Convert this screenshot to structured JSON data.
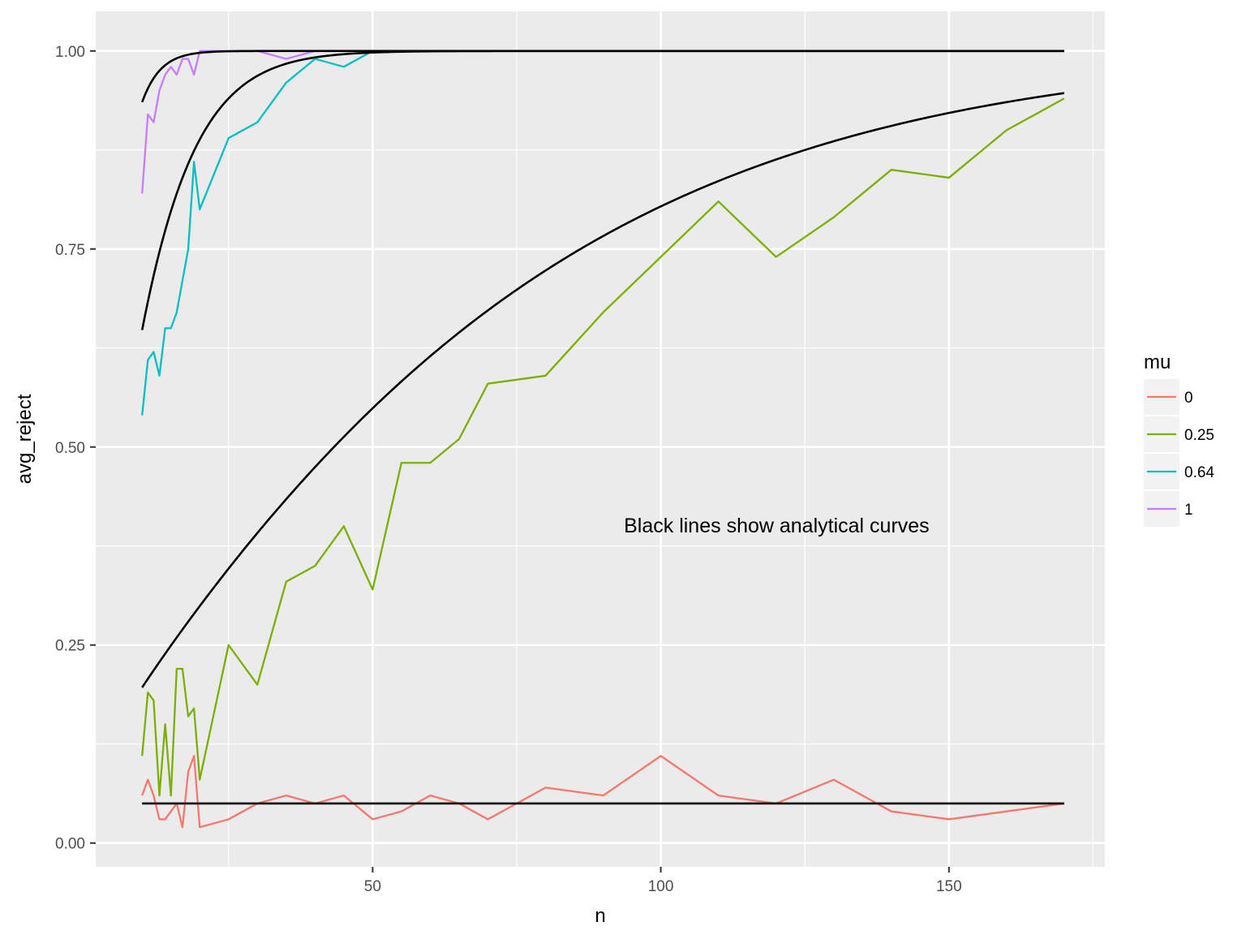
{
  "chart_data": {
    "type": "line",
    "xlabel": "n",
    "ylabel": "avg_reject",
    "xlim": [
      1.95,
      177.05
    ],
    "ylim": [
      -0.03,
      1.05
    ],
    "x_ticks": [
      50,
      100,
      150
    ],
    "x_tick_labels": [
      "50",
      "100",
      "150"
    ],
    "x_minor_ticks": [
      25,
      75,
      125,
      175
    ],
    "y_ticks": [
      0,
      0.25,
      0.5,
      0.75,
      1.0
    ],
    "y_tick_labels": [
      "0.00",
      "0.25",
      "0.50",
      "0.75",
      "1.00"
    ],
    "y_minor_ticks": [
      0.125,
      0.375,
      0.625,
      0.875
    ],
    "grid": true,
    "background": "#ebebeb",
    "legend": {
      "title": "mu",
      "position": "right"
    },
    "annotation": "Black lines show analytical curves",
    "series": [
      {
        "name": "0",
        "color": "#f8766d",
        "x": [
          10,
          11,
          12,
          13,
          14,
          15,
          16,
          17,
          18,
          19,
          20,
          25,
          30,
          35,
          40,
          45,
          50,
          55,
          60,
          65,
          70,
          80,
          90,
          100,
          110,
          120,
          130,
          140,
          150,
          160,
          170
        ],
        "y": [
          0.06,
          0.08,
          0.06,
          0.03,
          0.03,
          0.04,
          0.05,
          0.02,
          0.09,
          0.11,
          0.02,
          0.03,
          0.05,
          0.06,
          0.05,
          0.06,
          0.03,
          0.04,
          0.06,
          0.05,
          0.03,
          0.07,
          0.06,
          0.11,
          0.06,
          0.05,
          0.08,
          0.04,
          0.03,
          0.04,
          0.05
        ]
      },
      {
        "name": "0.25",
        "color": "#7cae00",
        "x": [
          10,
          11,
          12,
          13,
          14,
          15,
          16,
          17,
          18,
          19,
          20,
          25,
          30,
          35,
          40,
          45,
          50,
          55,
          60,
          65,
          70,
          80,
          90,
          100,
          110,
          120,
          130,
          140,
          150,
          160,
          170
        ],
        "y": [
          0.11,
          0.19,
          0.18,
          0.06,
          0.15,
          0.06,
          0.22,
          0.22,
          0.16,
          0.17,
          0.08,
          0.25,
          0.2,
          0.33,
          0.35,
          0.4,
          0.32,
          0.48,
          0.48,
          0.51,
          0.58,
          0.59,
          0.67,
          0.74,
          0.81,
          0.74,
          0.79,
          0.85,
          0.84,
          0.9,
          0.94
        ]
      },
      {
        "name": "0.64",
        "color": "#00bfc4",
        "x": [
          10,
          11,
          12,
          13,
          14,
          15,
          16,
          17,
          18,
          19,
          20,
          25,
          30,
          35,
          40,
          45,
          50
        ],
        "y": [
          0.54,
          0.61,
          0.62,
          0.59,
          0.65,
          0.65,
          0.67,
          0.71,
          0.75,
          0.86,
          0.8,
          0.89,
          0.91,
          0.96,
          0.99,
          0.98,
          1.0
        ]
      },
      {
        "name": "1",
        "color": "#c77cff",
        "x": [
          10,
          11,
          12,
          13,
          14,
          15,
          16,
          17,
          18,
          19,
          20,
          25,
          30,
          35,
          40
        ],
        "y": [
          0.82,
          0.92,
          0.91,
          0.95,
          0.97,
          0.98,
          0.97,
          0.99,
          0.99,
          0.97,
          1.0,
          1.0,
          1.0,
          0.99,
          1.0
        ]
      }
    ],
    "analytical_curves": {
      "color": "#000000",
      "x_range": [
        10,
        170
      ],
      "mu": [
        0,
        0.25,
        0.64,
        1
      ],
      "alpha": 0.05
    }
  }
}
